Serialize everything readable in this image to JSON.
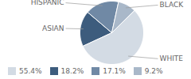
{
  "chart_data": {
    "type": "pie",
    "categories": [
      "WHITE",
      "ASIAN",
      "HISPANIC",
      "BLACK"
    ],
    "values": [
      55.4,
      18.2,
      17.1,
      9.2
    ],
    "value_labels": [
      "55.4%",
      "18.2%",
      "17.1%",
      "9.2%"
    ],
    "colors": [
      "#d3dbe4",
      "#3d5c7d",
      "#7089a5",
      "#a9b8c9"
    ],
    "legend": "bottom"
  }
}
